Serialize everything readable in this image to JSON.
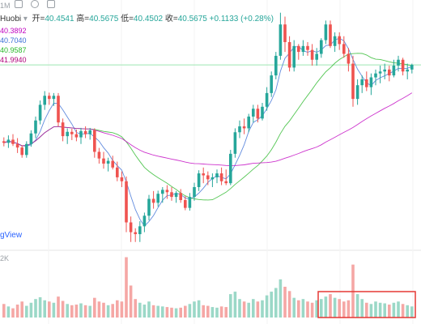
{
  "header": {
    "interval": "1M",
    "symbol": "Huobi",
    "open_label": "开",
    "open_value": "40.4541",
    "high_label": "高",
    "high_value": "40.5675",
    "low_label": "低",
    "low_value": "40.4502",
    "close_label": "收",
    "close_value": "40.5675",
    "change": "+0.1133 (+0.28%)"
  },
  "ma_values": [
    {
      "value": "40.3892",
      "color": "#c000c0"
    },
    {
      "value": "40.7040",
      "color": "#3b6fd6"
    },
    {
      "value": "40.9587",
      "color": "#28b828"
    },
    {
      "value": "41.9940",
      "color": "#b0007a"
    }
  ],
  "watermark": "gView",
  "volume_label": "2K",
  "colors": {
    "up": "#26a69a",
    "down": "#ef5350",
    "up_volume": "#9bd8c7",
    "down_volume": "#f5a7a5",
    "highlight_box": "#e53935",
    "current_price_line": "#9ee6b0"
  },
  "chart_data": {
    "type": "candlestick",
    "current_price": 40.5675,
    "candles": [
      [
        38.62,
        38.72,
        38.49,
        38.58
      ],
      [
        38.58,
        38.77,
        38.45,
        38.66
      ],
      [
        38.66,
        38.8,
        38.5,
        38.55
      ],
      [
        38.55,
        38.7,
        38.32,
        38.46
      ],
      [
        38.46,
        38.52,
        38.2,
        38.27
      ],
      [
        38.27,
        38.62,
        38.2,
        38.55
      ],
      [
        38.55,
        38.9,
        38.48,
        38.82
      ],
      [
        38.82,
        39.25,
        38.7,
        39.15
      ],
      [
        39.15,
        39.66,
        39.05,
        39.55
      ],
      [
        39.55,
        39.9,
        39.42,
        39.78
      ],
      [
        39.78,
        39.86,
        39.55,
        39.7
      ],
      [
        39.7,
        39.85,
        39.52,
        39.78
      ],
      [
        39.78,
        39.85,
        39.0,
        39.1
      ],
      [
        39.1,
        39.2,
        38.62,
        38.75
      ],
      [
        38.75,
        38.95,
        38.55,
        38.86
      ],
      [
        38.86,
        38.94,
        38.65,
        38.8
      ],
      [
        38.8,
        38.92,
        38.62,
        38.72
      ],
      [
        38.72,
        38.96,
        38.55,
        38.88
      ],
      [
        38.88,
        39.0,
        38.7,
        38.8
      ],
      [
        38.8,
        38.96,
        38.66,
        38.9
      ],
      [
        38.9,
        38.95,
        38.2,
        38.35
      ],
      [
        38.35,
        38.45,
        38.05,
        38.18
      ],
      [
        38.18,
        38.35,
        37.92,
        38.05
      ],
      [
        38.05,
        38.2,
        37.85,
        38.12
      ],
      [
        38.12,
        38.25,
        37.9,
        37.95
      ],
      [
        37.95,
        38.1,
        37.6,
        37.7
      ],
      [
        37.7,
        37.85,
        37.45,
        37.6
      ],
      [
        37.6,
        37.72,
        36.3,
        36.55
      ],
      [
        36.55,
        36.7,
        36.05,
        36.3
      ],
      [
        36.3,
        36.4,
        36.05,
        36.25
      ],
      [
        36.25,
        36.58,
        36.05,
        36.45
      ],
      [
        36.45,
        36.8,
        36.3,
        36.72
      ],
      [
        36.72,
        37.25,
        36.6,
        37.15
      ],
      [
        37.15,
        37.35,
        36.9,
        37.05
      ],
      [
        37.05,
        37.36,
        36.95,
        37.28
      ],
      [
        37.28,
        37.45,
        37.05,
        37.38
      ],
      [
        37.38,
        37.5,
        37.15,
        37.32
      ],
      [
        37.32,
        37.45,
        37.1,
        37.2
      ],
      [
        37.2,
        37.35,
        37.05,
        37.3
      ],
      [
        37.3,
        37.4,
        37.05,
        37.12
      ],
      [
        37.12,
        37.22,
        36.86,
        36.92
      ],
      [
        36.92,
        37.3,
        36.85,
        37.2
      ],
      [
        37.2,
        37.56,
        37.1,
        37.45
      ],
      [
        37.45,
        37.88,
        37.35,
        37.8
      ],
      [
        37.8,
        37.95,
        37.55,
        37.75
      ],
      [
        37.75,
        37.85,
        37.5,
        37.65
      ],
      [
        37.65,
        37.8,
        37.45,
        37.7
      ],
      [
        37.7,
        37.9,
        37.55,
        37.8
      ],
      [
        37.8,
        37.95,
        37.5,
        37.6
      ],
      [
        37.6,
        37.9,
        37.5,
        37.55
      ],
      [
        37.55,
        38.4,
        37.5,
        38.3
      ],
      [
        38.3,
        38.95,
        38.2,
        38.85
      ],
      [
        38.85,
        39.15,
        38.7,
        39.0
      ],
      [
        39.0,
        39.2,
        38.8,
        38.95
      ],
      [
        38.95,
        39.32,
        38.85,
        39.25
      ],
      [
        39.25,
        39.55,
        39.1,
        39.45
      ],
      [
        39.45,
        39.55,
        39.1,
        39.2
      ],
      [
        39.2,
        39.6,
        39.15,
        39.5
      ],
      [
        39.5,
        40.0,
        39.4,
        39.85
      ],
      [
        39.85,
        40.4,
        39.75,
        40.3
      ],
      [
        40.3,
        40.9,
        40.2,
        40.8
      ],
      [
        40.8,
        41.9,
        40.7,
        41.6
      ],
      [
        41.6,
        41.8,
        40.9,
        41.15
      ],
      [
        41.15,
        41.3,
        40.4,
        40.5
      ],
      [
        40.5,
        41.2,
        40.4,
        41.05
      ],
      [
        41.05,
        41.1,
        40.7,
        40.9
      ],
      [
        40.9,
        41.2,
        40.8,
        41.05
      ],
      [
        41.05,
        41.15,
        40.8,
        40.95
      ],
      [
        40.95,
        41.1,
        40.55,
        40.7
      ],
      [
        40.7,
        41.0,
        40.55,
        40.85
      ],
      [
        40.85,
        41.25,
        40.75,
        41.2
      ],
      [
        41.2,
        41.7,
        41.1,
        41.6
      ],
      [
        41.6,
        41.7,
        41.0,
        41.05
      ],
      [
        41.05,
        41.4,
        40.9,
        41.3
      ],
      [
        41.3,
        41.4,
        40.95,
        41.1
      ],
      [
        41.1,
        41.3,
        40.75,
        40.85
      ],
      [
        40.85,
        41.0,
        40.4,
        40.6
      ],
      [
        40.6,
        40.8,
        39.5,
        39.7
      ],
      [
        39.7,
        40.2,
        39.55,
        40.05
      ],
      [
        40.05,
        40.3,
        39.85,
        40.2
      ],
      [
        40.2,
        40.4,
        39.9,
        40.0
      ],
      [
        40.0,
        40.35,
        39.8,
        40.25
      ],
      [
        40.25,
        40.45,
        40.05,
        40.35
      ],
      [
        40.35,
        40.55,
        40.1,
        40.4
      ],
      [
        40.4,
        40.6,
        40.2,
        40.45
      ],
      [
        40.45,
        40.55,
        40.15,
        40.3
      ],
      [
        40.3,
        40.7,
        40.25,
        40.55
      ],
      [
        40.55,
        40.8,
        40.4,
        40.7
      ],
      [
        40.7,
        40.75,
        40.3,
        40.4
      ],
      [
        40.4,
        40.6,
        40.2,
        40.45
      ],
      [
        40.45,
        40.6,
        40.35,
        40.57
      ]
    ],
    "volumes": [
      220,
      180,
      150,
      210,
      260,
      190,
      240,
      300,
      330,
      280,
      260,
      240,
      340,
      270,
      220,
      200,
      210,
      230,
      200,
      190,
      320,
      260,
      240,
      200,
      220,
      280,
      260,
      980,
      520,
      300,
      240,
      210,
      260,
      200,
      190,
      180,
      170,
      160,
      150,
      160,
      190,
      220,
      260,
      280,
      200,
      190,
      170,
      160,
      180,
      170,
      380,
      420,
      300,
      260,
      240,
      300,
      260,
      280,
      360,
      420,
      480,
      620,
      500,
      430,
      320,
      280,
      300,
      260,
      240,
      280,
      300,
      340,
      380,
      320,
      300,
      260,
      280,
      860,
      380,
      300,
      240,
      220,
      260,
      240,
      230,
      210,
      240,
      260,
      220,
      200,
      180
    ],
    "ma_lines": [
      {
        "color": "#3b6fd6",
        "period": 5
      },
      {
        "color": "#28b828",
        "period": 20
      },
      {
        "color": "#c000c0",
        "period": 50
      }
    ],
    "price_range": [
      35.9,
      42.1
    ],
    "volume_max": 1000,
    "highlight_candle_range": [
      70,
      90
    ]
  }
}
